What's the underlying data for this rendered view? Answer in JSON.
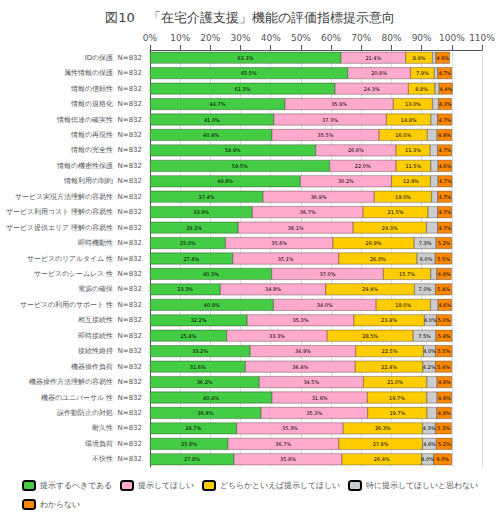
{
  "chart_data": {
    "type": "bar",
    "orientation": "horizontal",
    "stacked": true,
    "title": "図10　「在宅介護支援」機能の評価指標提示意向",
    "categories": [
      "IDの保護  N=832",
      "属性情報の保護  N=832",
      "情報の信頼性  N=832",
      "情報の規格化  N=832",
      "情報伝達の確実性  N=832",
      "情報の再現性  N=832",
      "情報の完全性  N=832",
      "情報の機密性保護  N=832",
      "情報利用の制約  N=832",
      "サービス実現方法理解の容易性  N=832",
      "サービス利用コスト 理解の容易性  N=832",
      "サービス提供エリア 理解の容易性  N=832",
      "即時機動性  N=832",
      "サービスのリアルタイム 性  N=832",
      "サービスのシームレス 性  N=832",
      "電源の確保  N=832",
      "サービスの利用のサポート 性  N=832",
      "相互接続性  N=832",
      "即時接続性  N=832",
      "接続性維持  N=832",
      "機器操作負荷  N=832",
      "機器操作方法理解の容易性  N=832",
      "機器のユニバーサル 性  N=832",
      "誤作動防止の対処  N=832",
      "耐久性  N=832",
      "環境負荷  N=832",
      "不快性  N=832"
    ],
    "series": [
      {
        "name": "提示するべきである",
        "color": "#44cc44",
        "values": [
          63.3,
          65.5,
          61.3,
          44.7,
          41.0,
          40.4,
          54.9,
          59.5,
          49.8,
          37.4,
          33.9,
          29.2,
          25.0,
          27.4,
          40.3,
          23.3,
          40.9,
          32.2,
          25.4,
          33.2,
          31.6,
          36.2,
          40.4,
          36.8,
          28.7,
          25.8,
          27.8
        ],
        "value_labels": [
          "63.3%",
          "65.5%",
          "61.3%",
          "44.7%",
          "41.0%",
          "40.4%",
          "54.9%",
          "59.5%",
          "49.8%",
          "37.4%",
          "33.9%",
          "29.2%",
          "25.0%",
          "27.4%",
          "40.3%",
          "23.3%",
          "40.9%",
          "32.2%",
          "25.4%",
          "33.2%",
          "31.6%",
          "36.2%",
          "40.4%",
          "36.8%",
          "28.7%",
          "25.8%",
          "27.8%"
        ]
      },
      {
        "name": "提示してほしい",
        "color": "#ffaacc",
        "values": [
          21.4,
          20.8,
          24.3,
          35.9,
          37.3,
          35.5,
          26.6,
          22.0,
          30.2,
          36.9,
          36.7,
          38.1,
          35.6,
          35.1,
          37.0,
          34.9,
          34.0,
          35.3,
          33.3,
          34.9,
          36.4,
          34.5,
          31.6,
          35.3,
          35.3,
          36.7,
          35.8
        ],
        "value_labels": [
          "21.4%",
          "20.8%",
          "24.3%",
          "35.9%",
          "37.3%",
          "35.5%",
          "26.6%",
          "22.0%",
          "30.2%",
          "36.9%",
          "36.7%",
          "38.1%",
          "35.6%",
          "35.1%",
          "37.0%",
          "34.9%",
          "34.0%",
          "35.3%",
          "33.3%",
          "34.9%",
          "36.4%",
          "34.5%",
          "31.6%",
          "35.3%",
          "35.3%",
          "36.7%",
          "35.8%"
        ]
      },
      {
        "name": "どちらかといえば提示してほしい",
        "color": "#ffcc00",
        "values": [
          8.9,
          7.9,
          8.8,
          13.0,
          14.8,
          16.0,
          11.3,
          11.5,
          12.9,
          19.0,
          21.5,
          24.3,
          26.9,
          26.0,
          15.7,
          29.4,
          18.0,
          23.4,
          28.5,
          22.5,
          22.4,
          21.0,
          19.7,
          19.7,
          26.3,
          27.8,
          26.4
        ],
        "value_labels": [
          "8.9%",
          "7.9%",
          "8.8%",
          "13.0%",
          "14.8%",
          "16.0%",
          "11.3%",
          "11.5%",
          "12.9%",
          "19.0%",
          "21.5%",
          "24.3%",
          "26.9%",
          "26.0%",
          "15.7%",
          "29.4%",
          "18.0%",
          "23.4%",
          "28.5%",
          "22.5%",
          "22.4%",
          "21.0%",
          "19.7%",
          "19.7%",
          "26.3%",
          "27.8%",
          "26.4%"
        ]
      },
      {
        "name": "特に提示してほしいと思わない",
        "color": "#cccccc",
        "values": [
          1.1,
          1.1,
          1.4,
          2.0,
          2.2,
          3.2,
          2.5,
          2.4,
          2.5,
          2.0,
          3.2,
          3.7,
          7.3,
          6.0,
          2.0,
          7.0,
          2.5,
          4.0,
          7.5,
          4.0,
          4.2,
          3.4,
          3.4,
          3.2,
          4.3,
          4.6,
          4.0
        ],
        "value_labels": [
          null,
          null,
          null,
          null,
          null,
          null,
          null,
          null,
          null,
          null,
          null,
          null,
          "7.3%",
          "6.0%",
          null,
          "7.0%",
          null,
          "4.0%",
          "7.5%",
          "4.0%",
          "4.2%",
          null,
          null,
          null,
          "4.3%",
          "4.6%",
          "4.0%"
        ]
      },
      {
        "name": "わからない",
        "color": "#ff8800",
        "values": [
          4.6,
          4.7,
          4.4,
          4.3,
          4.7,
          4.9,
          4.7,
          4.6,
          4.7,
          4.7,
          4.7,
          4.7,
          5.2,
          5.5,
          4.9,
          5.4,
          4.6,
          5.0,
          5.4,
          5.5,
          5.4,
          4.9,
          4.9,
          4.9,
          5.3,
          5.2,
          6.0
        ],
        "value_labels": [
          "4.6%",
          "4.7%",
          "4.4%",
          "4.3%",
          "4.7%",
          "4.9%",
          "4.7%",
          "4.6%",
          "4.7%",
          "4.7%",
          "4.7%",
          "4.7%",
          "5.2%",
          "5.5%",
          "4.9%",
          "5.4%",
          "4.6%",
          "5.0%",
          "5.4%",
          "5.5%",
          "5.4%",
          "4.9%",
          "4.9%",
          "4.9%",
          "5.3%",
          "5.2%",
          "6.0%"
        ]
      }
    ],
    "xlim": [
      0,
      110
    ],
    "xticks": [
      {
        "value": 0,
        "label": "0%"
      },
      {
        "value": 10,
        "label": "10%"
      },
      {
        "value": 20,
        "label": "20%"
      },
      {
        "value": 30,
        "label": "30%"
      },
      {
        "value": 40,
        "label": "40%"
      },
      {
        "value": 50,
        "label": "50%"
      },
      {
        "value": 60,
        "label": "60%"
      },
      {
        "value": 70,
        "label": "70%"
      },
      {
        "value": 80,
        "label": "80%"
      },
      {
        "value": 90,
        "label": "90%"
      },
      {
        "value": 100,
        "label": "100%"
      },
      {
        "value": 110,
        "label": "110%"
      }
    ],
    "grid": true,
    "legend": "bottom",
    "data_labels": true
  }
}
